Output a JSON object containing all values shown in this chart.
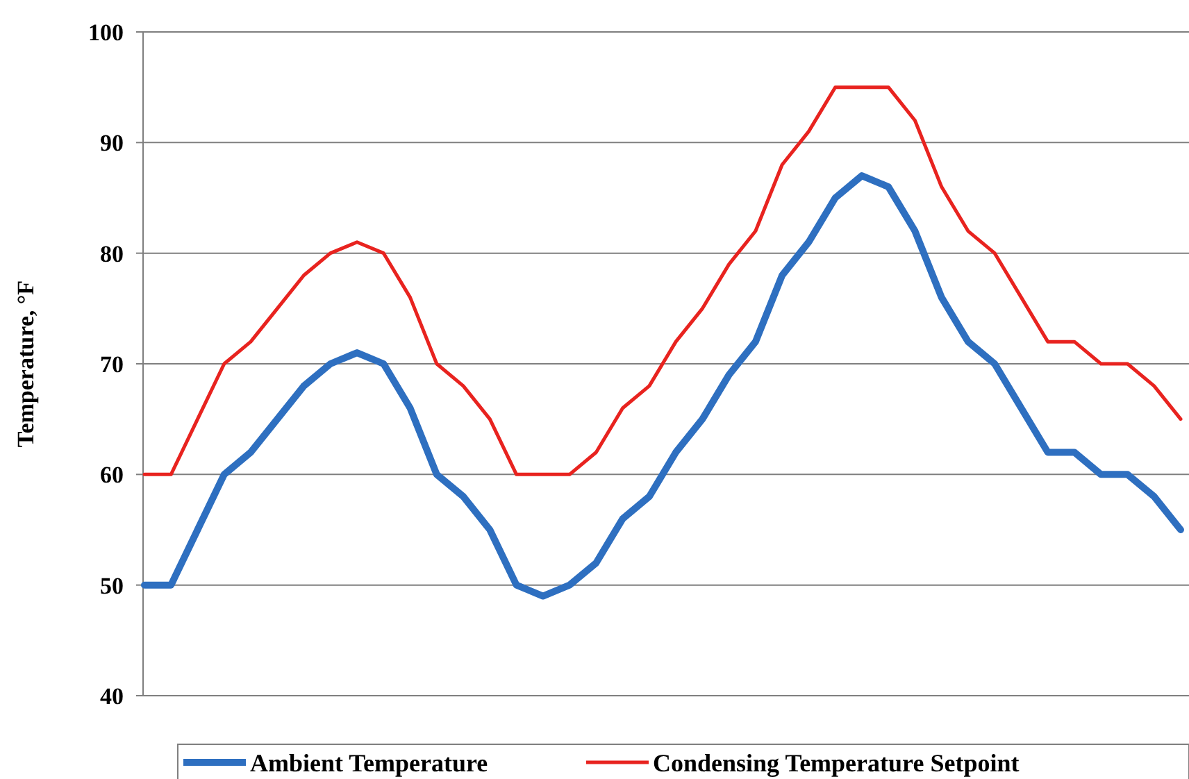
{
  "chart_data": {
    "type": "line",
    "ylabel": "Temperature, °F",
    "categories": [
      null,
      null,
      null,
      null,
      null,
      null,
      null,
      null,
      null,
      null,
      null,
      null,
      null,
      null,
      null,
      null,
      null,
      null,
      null,
      null,
      null,
      null,
      null,
      null,
      null,
      null,
      null,
      null,
      null,
      null,
      null,
      null,
      null,
      null,
      null,
      null,
      null,
      null,
      null,
      null
    ],
    "series": [
      {
        "name": "Ambient Temperature",
        "color": "#2e6fc0",
        "values": [
          50,
          50,
          55,
          60,
          62,
          65,
          68,
          70,
          71,
          70,
          66,
          60,
          58,
          55,
          50,
          49,
          50,
          52,
          56,
          58,
          62,
          65,
          69,
          72,
          78,
          81,
          85,
          87,
          86,
          82,
          76,
          72,
          70,
          66,
          62,
          62,
          60,
          60,
          58,
          55
        ]
      },
      {
        "name": "Condensing Temperature Setpoint",
        "color": "#e8231f",
        "values": [
          60,
          60,
          65,
          70,
          72,
          75,
          78,
          80,
          81,
          80,
          76,
          70,
          68,
          65,
          60,
          60,
          60,
          62,
          66,
          68,
          72,
          75,
          79,
          82,
          88,
          91,
          95,
          95,
          95,
          92,
          86,
          82,
          80,
          76,
          72,
          72,
          70,
          70,
          68,
          65
        ]
      }
    ],
    "ylim": [
      40,
      100
    ],
    "yticks": [
      40,
      50,
      60,
      70,
      80,
      90,
      100
    ],
    "grid": "y",
    "legend": "bottom",
    "tick_labels": "y"
  }
}
